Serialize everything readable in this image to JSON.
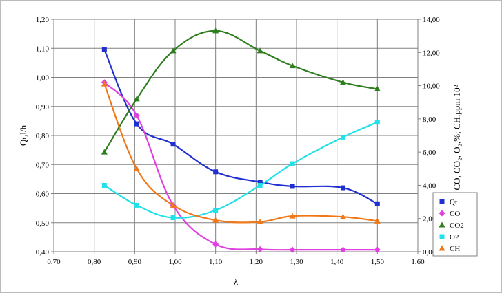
{
  "chart_data": {
    "type": "line",
    "xlabel": "λ",
    "ylabel_left": "Qₜ,l/h",
    "ylabel_right": "CO, CO₂, O₂,%; CH,ppm 10²",
    "xlim": [
      0.7,
      1.6
    ],
    "ylim_left": [
      0.4,
      1.2
    ],
    "ylim_right": [
      0.0,
      14.0
    ],
    "x_ticks": [
      "0,70",
      "0,80",
      "0,90",
      "1,00",
      "1,10",
      "1,20",
      "1,30",
      "1,40",
      "1,50",
      "1,60"
    ],
    "y_left_ticks": [
      "0,40",
      "0,50",
      "0,60",
      "0,70",
      "0,80",
      "0,90",
      "1,00",
      "1,10",
      "1,20"
    ],
    "y_right_ticks": [
      "0,00",
      "2,00",
      "4,00",
      "6,00",
      "8,00",
      "10,00",
      "12,00",
      "14,00"
    ],
    "grid": true,
    "legend_position": "right",
    "x": [
      0.825,
      0.905,
      0.995,
      1.1,
      1.21,
      1.29,
      1.415,
      1.5
    ],
    "series": [
      {
        "name": "Qt",
        "axis": "left",
        "marker": "square",
        "color": "#1f2fd0",
        "values": [
          1.095,
          0.84,
          0.77,
          0.675,
          0.64,
          0.625,
          0.62,
          0.565
        ]
      },
      {
        "name": "CO",
        "axis": "right",
        "marker": "diamond",
        "color": "#e040e0",
        "values": [
          10.2,
          8.2,
          2.8,
          0.45,
          0.15,
          0.12,
          0.12,
          0.12
        ]
      },
      {
        "name": "CO2",
        "axis": "right",
        "marker": "triangle",
        "color": "#2e7d1e",
        "values": [
          6.0,
          9.2,
          12.1,
          13.3,
          12.1,
          11.2,
          10.2,
          9.8
        ]
      },
      {
        "name": "O2",
        "axis": "right",
        "marker": "square",
        "color": "#22e0e8",
        "values": [
          4.0,
          2.8,
          2.05,
          2.5,
          4.0,
          5.3,
          6.9,
          7.8
        ]
      },
      {
        "name": "CH",
        "axis": "right",
        "marker": "triangle",
        "color": "#f07818",
        "values": [
          10.1,
          5.0,
          2.8,
          1.9,
          1.8,
          2.15,
          2.1,
          1.85
        ]
      }
    ]
  }
}
